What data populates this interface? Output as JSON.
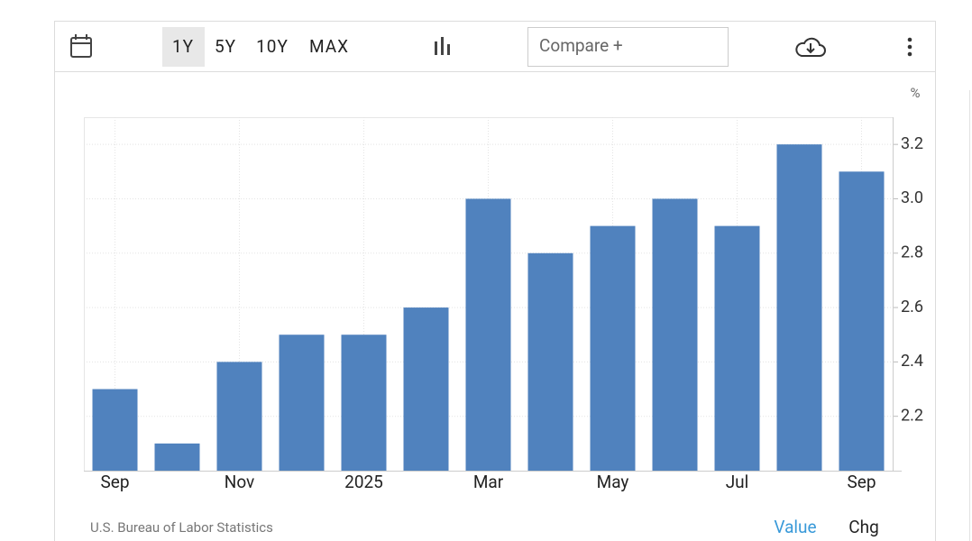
{
  "toolbar": {
    "ranges": [
      "1Y",
      "5Y",
      "10Y",
      "MAX"
    ],
    "compare": "Compare +"
  },
  "chart_data": {
    "type": "bar",
    "categories": [
      "Sep",
      null,
      "Nov",
      null,
      "2025",
      null,
      "Mar",
      null,
      "May",
      null,
      "Jul",
      null,
      "Sep"
    ],
    "values": [
      2.3,
      2.1,
      2.4,
      2.5,
      2.5,
      2.6,
      3.0,
      2.8,
      2.9,
      3.0,
      2.9,
      3.2,
      3.1
    ],
    "color": "#5082be",
    "y_unit": "%",
    "ylim": [
      2.0,
      3.3
    ],
    "yticks": [
      2.2,
      2.4,
      2.6,
      2.8,
      {
        "value": 3,
        "label": "3.0"
      },
      3.2
    ],
    "grid": true
  },
  "footer": {
    "source": "U.S. Bureau of Labor Statistics",
    "tabs": [
      "Value",
      "Chg"
    ]
  }
}
